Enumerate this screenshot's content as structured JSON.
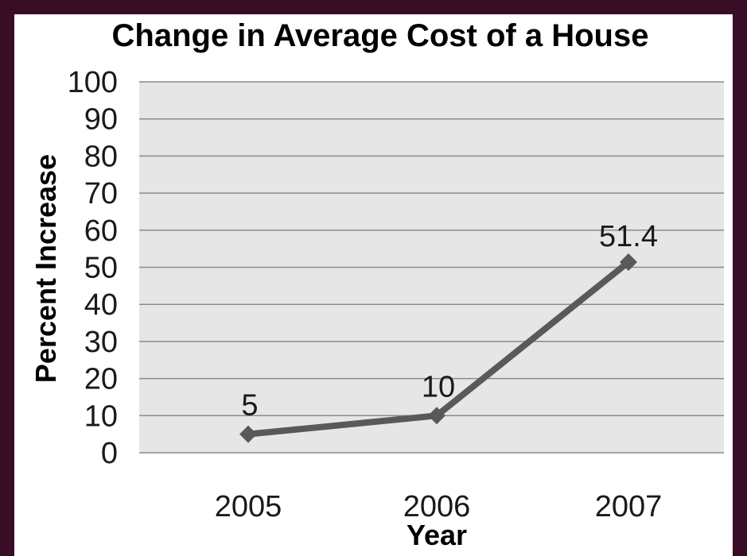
{
  "chart_data": {
    "type": "line",
    "title": "Change in Average Cost of a House",
    "xlabel": "Year",
    "ylabel": "Percent Increase",
    "categories": [
      "2005",
      "2006",
      "2007"
    ],
    "series": [
      {
        "values": [
          5,
          10,
          51.4
        ]
      }
    ],
    "data_labels": [
      "5",
      "10",
      "51.4"
    ],
    "ylim": [
      0,
      100
    ],
    "yticks": [
      0,
      10,
      20,
      30,
      40,
      50,
      60,
      70,
      80,
      90,
      100
    ],
    "grid": true,
    "legend": "none",
    "colors": {
      "frame": "#3a0d26",
      "plot_background": "#e6e6e6",
      "gridline": "#8c8c8c",
      "line": "#595959"
    }
  }
}
